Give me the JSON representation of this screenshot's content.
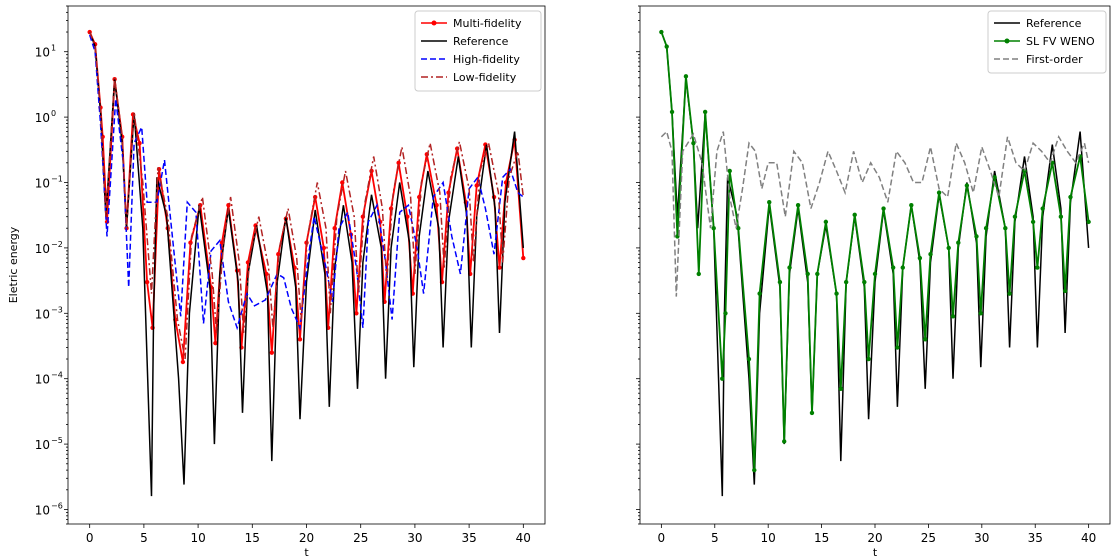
{
  "chart_data": [
    {
      "type": "line",
      "xlabel": "t",
      "ylabel": "Eletric energy",
      "yscale": "log",
      "xlim": [
        -2,
        42
      ],
      "ylim": [
        6e-07,
        50
      ],
      "xticks": [
        0,
        5,
        10,
        15,
        20,
        25,
        30,
        35,
        40
      ],
      "xtick_labels": [
        "0",
        "5",
        "10",
        "15",
        "20",
        "25",
        "30",
        "35",
        "40"
      ],
      "yticks": [
        1e-06,
        1e-05,
        0.0001,
        0.001,
        0.01,
        0.1,
        1,
        10
      ],
      "ytick_labels": [
        "10",
        "10",
        "10",
        "10",
        "10",
        "10",
        "10",
        "10"
      ],
      "ytick_exponents": [
        "−6",
        "−5",
        "−4",
        "−3",
        "−2",
        "−1",
        "0",
        "1"
      ],
      "legend_position": "top-right",
      "series": [
        {
          "name": "Multi-fidelity",
          "color": "#ff0000",
          "dash": "solid",
          "marker": "dot",
          "x": [
            0,
            0.5,
            1.0,
            1.2,
            1.6,
            2.3,
            3.0,
            3.4,
            4.0,
            4.6,
            5.3,
            5.8,
            6.4,
            7.2,
            7.9,
            8.6,
            9.3,
            10.2,
            11.2,
            11.6,
            12.2,
            12.8,
            13.6,
            14.0,
            14.6,
            15.3,
            16.3,
            16.8,
            17.4,
            18.1,
            18.9,
            19.4,
            20.0,
            20.8,
            21.6,
            22.0,
            22.6,
            23.3,
            24.1,
            24.6,
            25.2,
            26.0,
            26.8,
            27.2,
            27.8,
            28.5,
            29.3,
            29.8,
            30.4,
            31.1,
            32.0,
            32.5,
            33.1,
            33.9,
            34.7,
            35.1,
            35.7,
            36.5,
            37.3,
            37.8,
            38.4,
            39.2,
            40.0
          ],
          "y": [
            20,
            13,
            1.4,
            0.5,
            0.025,
            3.8,
            0.5,
            0.02,
            1.1,
            0.4,
            0.003,
            0.0006,
            0.16,
            0.02,
            0.0008,
            0.00018,
            0.012,
            0.045,
            0.0025,
            0.00035,
            0.012,
            0.045,
            0.0045,
            0.0003,
            0.006,
            0.022,
            0.004,
            0.00025,
            0.008,
            0.028,
            0.005,
            0.0004,
            0.012,
            0.06,
            0.01,
            0.0006,
            0.02,
            0.1,
            0.016,
            0.001,
            0.03,
            0.15,
            0.025,
            0.0015,
            0.04,
            0.2,
            0.03,
            0.002,
            0.06,
            0.27,
            0.045,
            0.003,
            0.07,
            0.33,
            0.05,
            0.004,
            0.09,
            0.38,
            0.06,
            0.005,
            0.1,
            0.45,
            0.007
          ]
        },
        {
          "name": "Reference",
          "color": "#000000",
          "dash": "solid",
          "marker": "none",
          "x": [
            0,
            0.5,
            1.0,
            1.5,
            2.3,
            3.0,
            3.4,
            4.1,
            4.9,
            5.7,
            5.9,
            6.2,
            7.1,
            8.2,
            8.7,
            9.2,
            10.1,
            11.1,
            11.5,
            12.0,
            12.8,
            13.7,
            14.1,
            14.6,
            15.4,
            16.4,
            16.8,
            17.3,
            18.1,
            19.0,
            19.4,
            20.0,
            20.8,
            21.7,
            22.1,
            22.6,
            23.4,
            24.2,
            24.7,
            25.2,
            26.0,
            26.9,
            27.3,
            27.8,
            28.6,
            29.5,
            29.9,
            30.4,
            31.2,
            32.2,
            32.6,
            33.1,
            34.0,
            34.8,
            35.2,
            35.7,
            36.6,
            37.4,
            37.8,
            38.3,
            39.2,
            40.0
          ],
          "y": [
            20,
            12,
            1.2,
            0.03,
            3.8,
            0.4,
            0.02,
            1.15,
            0.02,
            1.6e-06,
            0.001,
            0.12,
            0.03,
            0.0001,
            2.4e-06,
            0.001,
            0.045,
            0.0025,
            1e-05,
            0.004,
            0.04,
            0.003,
            3e-05,
            0.004,
            0.022,
            0.002,
            5.5e-06,
            0.003,
            0.03,
            0.0025,
            2.4e-05,
            0.003,
            0.038,
            0.004,
            3.7e-05,
            0.005,
            0.045,
            0.006,
            7e-05,
            0.006,
            0.065,
            0.01,
            0.0001,
            0.01,
            0.1,
            0.012,
            0.00015,
            0.015,
            0.15,
            0.02,
            0.0003,
            0.025,
            0.25,
            0.03,
            0.0003,
            0.03,
            0.38,
            0.04,
            0.0005,
            0.05,
            0.6,
            0.01
          ]
        },
        {
          "name": "High-fidelity",
          "color": "#0000ff",
          "dash": "dashed",
          "marker": "none",
          "x": [
            0,
            0.5,
            1.0,
            1.6,
            2.4,
            3.1,
            3.6,
            4.1,
            4.8,
            5.3,
            6.2,
            6.9,
            7.8,
            8.4,
            9.0,
            9.8,
            10.5,
            11.2,
            12.0,
            12.8,
            13.6,
            14.5,
            15.2,
            16.2,
            17.3,
            17.9,
            18.6,
            19.4,
            20.1,
            20.7,
            21.8,
            22.4,
            23.0,
            23.8,
            24.6,
            25.2,
            25.7,
            26.5,
            27.3,
            27.9,
            28.6,
            29.4,
            30.2,
            30.8,
            31.7,
            32.6,
            33.4,
            34.2,
            35.0,
            35.8,
            36.5,
            37.3,
            38.1,
            38.8,
            39.5,
            40.0
          ],
          "y": [
            18,
            10,
            0.8,
            0.015,
            1.9,
            0.2,
            0.0025,
            0.4,
            0.7,
            0.05,
            0.05,
            0.22,
            0.008,
            0.0009,
            0.05,
            0.035,
            0.0007,
            0.009,
            0.013,
            0.0015,
            0.0006,
            0.002,
            0.0013,
            0.0016,
            0.004,
            0.0035,
            0.0012,
            0.0006,
            0.006,
            0.03,
            0.005,
            0.0015,
            0.02,
            0.035,
            0.005,
            0.0006,
            0.025,
            0.045,
            0.006,
            0.0008,
            0.035,
            0.045,
            0.01,
            0.002,
            0.06,
            0.1,
            0.015,
            0.004,
            0.08,
            0.12,
            0.04,
            0.008,
            0.12,
            0.16,
            0.07,
            0.06
          ]
        },
        {
          "name": "Low-fidelity",
          "color": "#b22222",
          "dash": "dashdot",
          "marker": "none",
          "x": [
            0,
            0.5,
            1.0,
            1.5,
            2.3,
            3.0,
            3.4,
            4.1,
            4.9,
            5.7,
            6.3,
            7.2,
            8.1,
            8.8,
            9.4,
            10.4,
            11.3,
            11.7,
            12.4,
            13.0,
            13.8,
            14.2,
            14.8,
            15.6,
            16.5,
            16.9,
            17.5,
            18.3,
            19.1,
            19.5,
            20.1,
            21.0,
            21.8,
            22.2,
            22.8,
            23.6,
            24.4,
            24.8,
            25.4,
            26.2,
            27.0,
            27.4,
            28.0,
            28.8,
            29.6,
            30.0,
            30.6,
            31.4,
            32.3,
            32.7,
            33.3,
            34.1,
            35.0,
            35.4,
            36.0,
            36.8,
            37.7,
            38.1,
            38.7,
            39.5,
            40.0
          ],
          "y": [
            20,
            12,
            1.3,
            0.03,
            4.0,
            0.5,
            0.02,
            1.2,
            0.1,
            0.002,
            0.17,
            0.03,
            0.0008,
            0.0002,
            0.015,
            0.06,
            0.004,
            0.0005,
            0.015,
            0.06,
            0.006,
            0.0005,
            0.008,
            0.03,
            0.005,
            0.0006,
            0.01,
            0.04,
            0.007,
            0.0008,
            0.015,
            0.1,
            0.02,
            0.001,
            0.03,
            0.15,
            0.03,
            0.002,
            0.05,
            0.25,
            0.04,
            0.003,
            0.07,
            0.35,
            0.06,
            0.004,
            0.1,
            0.4,
            0.07,
            0.005,
            0.12,
            0.42,
            0.08,
            0.006,
            0.15,
            0.4,
            0.07,
            0.006,
            0.12,
            0.3,
            0.06
          ]
        }
      ]
    },
    {
      "type": "line",
      "xlabel": "t",
      "ylabel": "",
      "yscale": "log",
      "xlim": [
        -2,
        42
      ],
      "ylim": [
        6e-07,
        50
      ],
      "xticks": [
        0,
        5,
        10,
        15,
        20,
        25,
        30,
        35,
        40
      ],
      "xtick_labels": [
        "0",
        "5",
        "10",
        "15",
        "20",
        "25",
        "30",
        "35",
        "40"
      ],
      "yticks": [
        1e-06,
        1e-05,
        0.0001,
        0.001,
        0.01,
        0.1,
        1,
        10
      ],
      "legend_position": "top-right",
      "series": [
        {
          "name": "Reference",
          "color": "#000000",
          "dash": "solid",
          "marker": "none",
          "x": [
            0,
            0.5,
            1.0,
            1.5,
            2.3,
            3.0,
            3.4,
            4.1,
            4.9,
            5.7,
            5.9,
            6.2,
            7.1,
            8.2,
            8.7,
            9.2,
            10.1,
            11.1,
            11.5,
            12.0,
            12.8,
            13.7,
            14.1,
            14.6,
            15.4,
            16.4,
            16.8,
            17.3,
            18.1,
            19.0,
            19.4,
            20.0,
            20.8,
            21.7,
            22.1,
            22.6,
            23.4,
            24.2,
            24.7,
            25.2,
            26.0,
            26.9,
            27.3,
            27.8,
            28.6,
            29.5,
            29.9,
            30.4,
            31.2,
            32.2,
            32.6,
            33.1,
            34.0,
            34.8,
            35.2,
            35.7,
            36.6,
            37.4,
            37.8,
            38.3,
            39.2,
            40.0
          ],
          "y": [
            20,
            12,
            1.2,
            0.03,
            3.8,
            0.4,
            0.02,
            1.15,
            0.02,
            1.6e-06,
            0.001,
            0.12,
            0.03,
            0.0001,
            2.4e-06,
            0.001,
            0.045,
            0.0025,
            1e-05,
            0.004,
            0.04,
            0.003,
            3e-05,
            0.004,
            0.022,
            0.002,
            5.5e-06,
            0.003,
            0.03,
            0.0025,
            2.4e-05,
            0.003,
            0.038,
            0.004,
            3.7e-05,
            0.005,
            0.045,
            0.006,
            7e-05,
            0.006,
            0.065,
            0.01,
            0.0001,
            0.01,
            0.1,
            0.012,
            0.00015,
            0.015,
            0.15,
            0.02,
            0.0003,
            0.025,
            0.25,
            0.03,
            0.0003,
            0.03,
            0.38,
            0.04,
            0.0005,
            0.05,
            0.6,
            0.01
          ]
        },
        {
          "name": "SL FV WENO",
          "color": "#008000",
          "dash": "solid",
          "marker": "dot",
          "x": [
            0,
            0.5,
            1.0,
            1.5,
            2.3,
            3.0,
            3.5,
            4.1,
            4.9,
            5.7,
            6.0,
            6.4,
            7.2,
            8.2,
            8.7,
            9.2,
            10.1,
            11.1,
            11.5,
            12.0,
            12.8,
            13.7,
            14.1,
            14.6,
            15.4,
            16.4,
            16.8,
            17.3,
            18.1,
            19.0,
            19.4,
            20.0,
            20.8,
            21.7,
            22.1,
            22.6,
            23.4,
            24.2,
            24.7,
            25.2,
            26.0,
            26.9,
            27.3,
            27.8,
            28.6,
            29.5,
            29.9,
            30.4,
            31.2,
            32.2,
            32.6,
            33.1,
            34.0,
            34.8,
            35.2,
            35.7,
            36.6,
            37.4,
            37.8,
            38.3,
            39.2,
            40.0
          ],
          "y": [
            20,
            12,
            1.2,
            0.015,
            4.2,
            0.4,
            0.004,
            1.2,
            0.02,
            0.0001,
            0.001,
            0.15,
            0.02,
            0.0002,
            4e-06,
            0.002,
            0.05,
            0.003,
            1.1e-05,
            0.005,
            0.045,
            0.004,
            3e-05,
            0.004,
            0.025,
            0.002,
            7e-05,
            0.003,
            0.032,
            0.003,
            0.0002,
            0.004,
            0.04,
            0.005,
            0.0003,
            0.005,
            0.045,
            0.007,
            0.0004,
            0.008,
            0.07,
            0.01,
            0.0009,
            0.012,
            0.09,
            0.015,
            0.001,
            0.02,
            0.12,
            0.02,
            0.002,
            0.03,
            0.15,
            0.025,
            0.005,
            0.04,
            0.2,
            0.03,
            0.0022,
            0.06,
            0.25,
            0.025
          ]
        },
        {
          "name": "First-order",
          "color": "#808080",
          "dash": "dashed",
          "marker": "none",
          "x": [
            0,
            0.5,
            1.0,
            1.4,
            2.0,
            3.0,
            3.8,
            4.6,
            5.2,
            5.8,
            6.4,
            7.0,
            7.6,
            8.2,
            8.8,
            9.4,
            10.0,
            10.8,
            11.6,
            12.4,
            13.2,
            14.0,
            14.8,
            15.6,
            16.4,
            17.2,
            18.0,
            18.8,
            19.6,
            20.4,
            21.2,
            22.0,
            22.8,
            23.6,
            24.4,
            25.2,
            26.0,
            26.8,
            27.6,
            28.4,
            29.2,
            30.0,
            30.8,
            31.6,
            32.4,
            33.2,
            34.0,
            34.8,
            35.6,
            36.4,
            37.2,
            38.0,
            38.8,
            39.6,
            40.0
          ],
          "y": [
            0.5,
            0.6,
            0.3,
            0.0018,
            0.3,
            0.55,
            0.2,
            0.02,
            0.3,
            0.6,
            0.06,
            0.02,
            0.08,
            0.4,
            0.3,
            0.08,
            0.2,
            0.2,
            0.03,
            0.3,
            0.2,
            0.04,
            0.1,
            0.3,
            0.15,
            0.07,
            0.3,
            0.1,
            0.2,
            0.12,
            0.05,
            0.3,
            0.2,
            0.1,
            0.1,
            0.35,
            0.08,
            0.06,
            0.4,
            0.2,
            0.07,
            0.35,
            0.15,
            0.06,
            0.5,
            0.2,
            0.15,
            0.4,
            0.3,
            0.2,
            0.5,
            0.3,
            0.2,
            0.4,
            0.2
          ]
        }
      ]
    }
  ]
}
